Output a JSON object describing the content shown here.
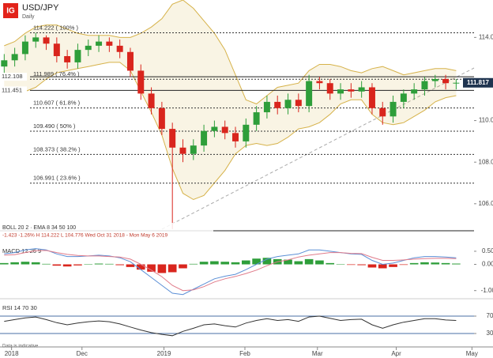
{
  "header": {
    "logo": "IG",
    "symbol": "USD/JPY",
    "timeframe": "Daily"
  },
  "footer_note": "Data is indicative",
  "chart_data": [
    {
      "type": "candlestick",
      "indicators": "BOLL 20 2 · EMA 8 34 50 100",
      "info": "-1.423  -1.26%  H 114.222  L 104.776  Wed Oct 31 2018 - Mon May 6 2019",
      "categories": [
        null,
        null,
        null,
        null,
        null,
        null,
        null,
        null,
        null,
        null,
        null,
        null,
        null,
        null,
        null,
        null,
        null,
        null,
        null,
        null,
        null,
        null,
        null,
        null,
        null,
        null,
        null,
        null,
        null,
        null,
        null,
        null,
        null,
        null,
        null,
        null,
        null,
        null,
        null,
        null,
        null,
        null,
        null,
        null
      ],
      "xlim": [
        -0.4,
        44.7
      ],
      "xticks": [
        {
          "value": 0.7,
          "label": "2018"
        },
        {
          "value": 7.4,
          "label": "Dec"
        },
        {
          "value": 15.2,
          "label": "2019"
        },
        {
          "value": 22.9,
          "label": "Feb"
        },
        {
          "value": 29.8,
          "label": "Mar"
        },
        {
          "value": 37.3,
          "label": "Apr"
        },
        {
          "value": 44.5,
          "label": "May"
        }
      ],
      "ylim": [
        104.7,
        115.8
      ],
      "yticks": [
        {
          "value": 114,
          "label": "114.000"
        },
        {
          "value": 110,
          "label": "110.000"
        },
        {
          "value": 108,
          "label": "108.000"
        },
        {
          "value": 106,
          "label": "106.000"
        }
      ],
      "up_color": "#2e9e3a",
      "down_color": "#d9251d",
      "open": [
        112.6,
        112.9,
        113.2,
        113.8,
        114.0,
        113.7,
        113.1,
        112.8,
        113.4,
        113.6,
        113.8,
        113.6,
        113.3,
        112.4,
        111.3,
        110.6,
        109.6,
        108.7,
        108.4,
        108.8,
        109.5,
        109.7,
        109.4,
        109.0,
        109.8,
        110.4,
        110.9,
        110.6,
        111.0,
        110.7,
        111.9,
        111.8,
        111.3,
        111.5,
        111.4,
        111.6,
        110.6,
        110.2,
        110.9,
        111.3,
        111.5,
        111.9,
        112.0,
        111.8
      ],
      "high": [
        113.2,
        113.5,
        114.1,
        114.22,
        114.1,
        114.0,
        113.4,
        113.7,
        113.9,
        114.1,
        114.0,
        113.9,
        113.5,
        112.7,
        111.6,
        110.9,
        109.9,
        109.1,
        109.1,
        109.8,
        110.0,
        110.0,
        109.7,
        110.1,
        110.7,
        111.2,
        111.2,
        111.3,
        111.3,
        112.2,
        112.1,
        112.0,
        111.8,
        111.8,
        111.9,
        111.8,
        110.9,
        111.2,
        111.5,
        111.8,
        112.1,
        112.2,
        112.2,
        112.0
      ],
      "low": [
        112.3,
        112.6,
        112.9,
        113.5,
        113.4,
        112.8,
        112.5,
        112.5,
        113.1,
        113.3,
        113.3,
        113.0,
        112.1,
        111.0,
        110.3,
        109.3,
        104.78,
        108.0,
        108.1,
        108.5,
        109.2,
        109.1,
        108.7,
        108.7,
        109.5,
        110.1,
        110.3,
        110.3,
        110.4,
        110.4,
        111.5,
        111.0,
        111.0,
        111.1,
        111.1,
        110.3,
        109.8,
        109.9,
        110.6,
        111.0,
        111.2,
        111.6,
        111.5,
        111.5
      ],
      "close": [
        112.9,
        113.2,
        113.8,
        114.0,
        113.7,
        113.1,
        112.8,
        113.4,
        113.6,
        113.8,
        113.6,
        113.3,
        112.4,
        111.3,
        110.6,
        109.6,
        108.7,
        108.4,
        108.8,
        109.5,
        109.7,
        109.4,
        109.0,
        109.8,
        110.4,
        110.9,
        110.6,
        111.0,
        110.7,
        111.9,
        111.8,
        111.3,
        111.5,
        111.4,
        111.6,
        110.6,
        110.2,
        110.9,
        111.3,
        111.5,
        111.9,
        112.0,
        111.8,
        111.82
      ],
      "bands": {
        "color": "#d6b24a",
        "upper": [
          113.6,
          113.8,
          114.2,
          114.5,
          114.6,
          114.6,
          114.4,
          114.2,
          114.1,
          114.1,
          114.1,
          114.0,
          114.0,
          114.2,
          114.5,
          114.9,
          115.6,
          115.8,
          115.4,
          114.8,
          114.2,
          113.4,
          112.2,
          111.0,
          110.8,
          111.2,
          111.6,
          111.7,
          111.8,
          112.4,
          112.7,
          112.7,
          112.6,
          112.4,
          112.3,
          112.5,
          112.6,
          112.4,
          112.2,
          112.3,
          112.4,
          112.5,
          112.5,
          112.4
        ],
        "lower": [
          111.6,
          111.5,
          111.4,
          111.6,
          112.0,
          112.3,
          112.4,
          112.5,
          112.6,
          112.7,
          112.8,
          112.8,
          112.4,
          111.4,
          110.4,
          109.3,
          107.7,
          106.5,
          106.2,
          106.4,
          107.0,
          107.6,
          108.4,
          108.8,
          108.9,
          108.8,
          108.9,
          109.2,
          109.6,
          109.7,
          109.9,
          110.3,
          110.8,
          111.0,
          111.0,
          110.3,
          109.9,
          109.8,
          109.9,
          110.2,
          110.5,
          110.9,
          111.1,
          111.2
        ]
      },
      "fibonacci": [
        {
          "value": 114.222,
          "label": "114.222 ( 100% )"
        },
        {
          "value": 111.989,
          "label": "111.989 ( 76.4% )"
        },
        {
          "value": 110.607,
          "label": "110.607 ( 61.8% )"
        },
        {
          "value": 109.49,
          "label": "109.490 ( 50% )"
        },
        {
          "value": 108.373,
          "label": "108.373 ( 38.2% )"
        },
        {
          "value": 106.991,
          "label": "106.991 ( 23.6% )"
        }
      ],
      "levels": [
        112.108,
        111.451
      ],
      "last_price": 111.817
    },
    {
      "type": "macd",
      "title": "MACD 12 26 9",
      "ylim": [
        -1.25,
        0.95
      ],
      "yticks": [
        {
          "value": 0.5,
          "label": "0.500"
        },
        {
          "value": 0,
          "label": "0.000"
        },
        {
          "value": -1,
          "label": "-1.000"
        }
      ],
      "histogram": [
        0.05,
        0.08,
        0.1,
        0.08,
        0.02,
        -0.05,
        -0.08,
        -0.04,
        0.0,
        0.03,
        0.02,
        -0.03,
        -0.1,
        -0.2,
        -0.28,
        -0.33,
        -0.3,
        -0.15,
        0.02,
        0.1,
        0.12,
        0.1,
        0.08,
        0.15,
        0.22,
        0.25,
        0.2,
        0.18,
        0.12,
        0.2,
        0.15,
        0.05,
        0.0,
        -0.02,
        -0.03,
        -0.12,
        -0.15,
        -0.1,
        -0.02,
        0.05,
        0.08,
        0.07,
        0.05,
        0.03
      ],
      "macd": [
        0.4,
        0.45,
        0.55,
        0.6,
        0.55,
        0.4,
        0.3,
        0.3,
        0.32,
        0.35,
        0.32,
        0.25,
        0.1,
        -0.2,
        -0.5,
        -0.8,
        -1.1,
        -1.15,
        -0.95,
        -0.75,
        -0.55,
        -0.45,
        -0.38,
        -0.2,
        0.0,
        0.2,
        0.3,
        0.35,
        0.4,
        0.55,
        0.55,
        0.5,
        0.45,
        0.4,
        0.38,
        0.15,
        0.0,
        0.05,
        0.15,
        0.25,
        0.3,
        0.3,
        0.28,
        0.25
      ],
      "signal": [
        0.35,
        0.37,
        0.45,
        0.52,
        0.53,
        0.45,
        0.38,
        0.34,
        0.32,
        0.32,
        0.3,
        0.28,
        0.2,
        0.0,
        -0.22,
        -0.47,
        -0.8,
        -1.0,
        -0.97,
        -0.85,
        -0.67,
        -0.55,
        -0.46,
        -0.35,
        -0.22,
        -0.05,
        0.1,
        0.17,
        0.28,
        0.35,
        0.4,
        0.45,
        0.45,
        0.42,
        0.41,
        0.27,
        0.15,
        0.15,
        0.17,
        0.2,
        0.22,
        0.23,
        0.23,
        0.22
      ],
      "macd_color": "#5b8fd6",
      "signal_color": "#e07b8a",
      "up_color": "#2e9e3a",
      "down_color": "#d9251d"
    },
    {
      "type": "rsi",
      "title": "RSI 14 70 30",
      "ylim": [
        0,
        100
      ],
      "yticks": [
        70,
        30
      ],
      "color": "#333333",
      "band_color": "#4a6fa5",
      "values": [
        58,
        62,
        66,
        68,
        62,
        55,
        50,
        54,
        57,
        59,
        57,
        52,
        45,
        38,
        32,
        28,
        25,
        35,
        42,
        50,
        52,
        48,
        45,
        54,
        60,
        64,
        60,
        62,
        58,
        68,
        70,
        65,
        60,
        62,
        63,
        50,
        42,
        50,
        56,
        60,
        64,
        64,
        61,
        60
      ]
    }
  ]
}
